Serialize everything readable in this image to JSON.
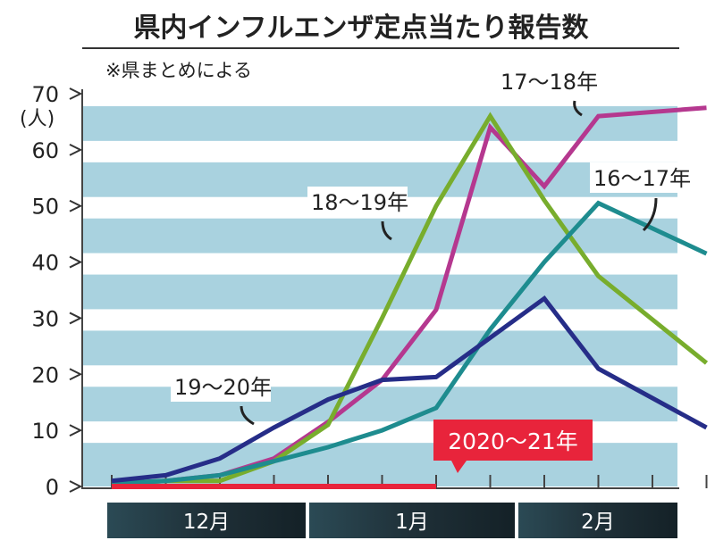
{
  "chart_data": {
    "type": "line",
    "title": "県内インフルエンザ定点当たり報告数",
    "subtitle": "※県まとめによる",
    "ylabel": "(人)",
    "ylim": [
      0,
      70
    ],
    "yticks": [
      0,
      10,
      20,
      30,
      40,
      50,
      60,
      70
    ],
    "grid": "horizontal-stripes",
    "months": [
      "12月",
      "1月",
      "2月"
    ],
    "x": [
      1,
      2,
      3,
      4,
      5,
      6,
      7,
      8,
      9,
      10,
      11,
      12
    ],
    "series": [
      {
        "name": "17〜18年",
        "color": "#b5388f",
        "values": [
          0.5,
          1,
          2,
          5,
          11.5,
          19,
          31.5,
          64,
          53.5,
          66,
          null,
          67.5
        ]
      },
      {
        "name": "18〜19年",
        "color": "#78ad2d",
        "values": [
          0.5,
          1,
          1,
          4.5,
          11,
          30,
          50,
          66,
          51,
          37.5,
          null,
          22
        ]
      },
      {
        "name": "16〜17年",
        "color": "#1e8c8f",
        "values": [
          0.5,
          1,
          2,
          4.5,
          7,
          10,
          14,
          28,
          40,
          50.5,
          null,
          41.5
        ]
      },
      {
        "name": "19〜20年",
        "color": "#262d88",
        "values": [
          1,
          2,
          5,
          10.5,
          15.5,
          19,
          19.5,
          26.5,
          33.5,
          21,
          null,
          10.5
        ]
      },
      {
        "name": "2020〜21年",
        "color": "#e8243b",
        "values": [
          0,
          0,
          0,
          0,
          0,
          0,
          0,
          null,
          null,
          null,
          null,
          null
        ]
      }
    ]
  }
}
